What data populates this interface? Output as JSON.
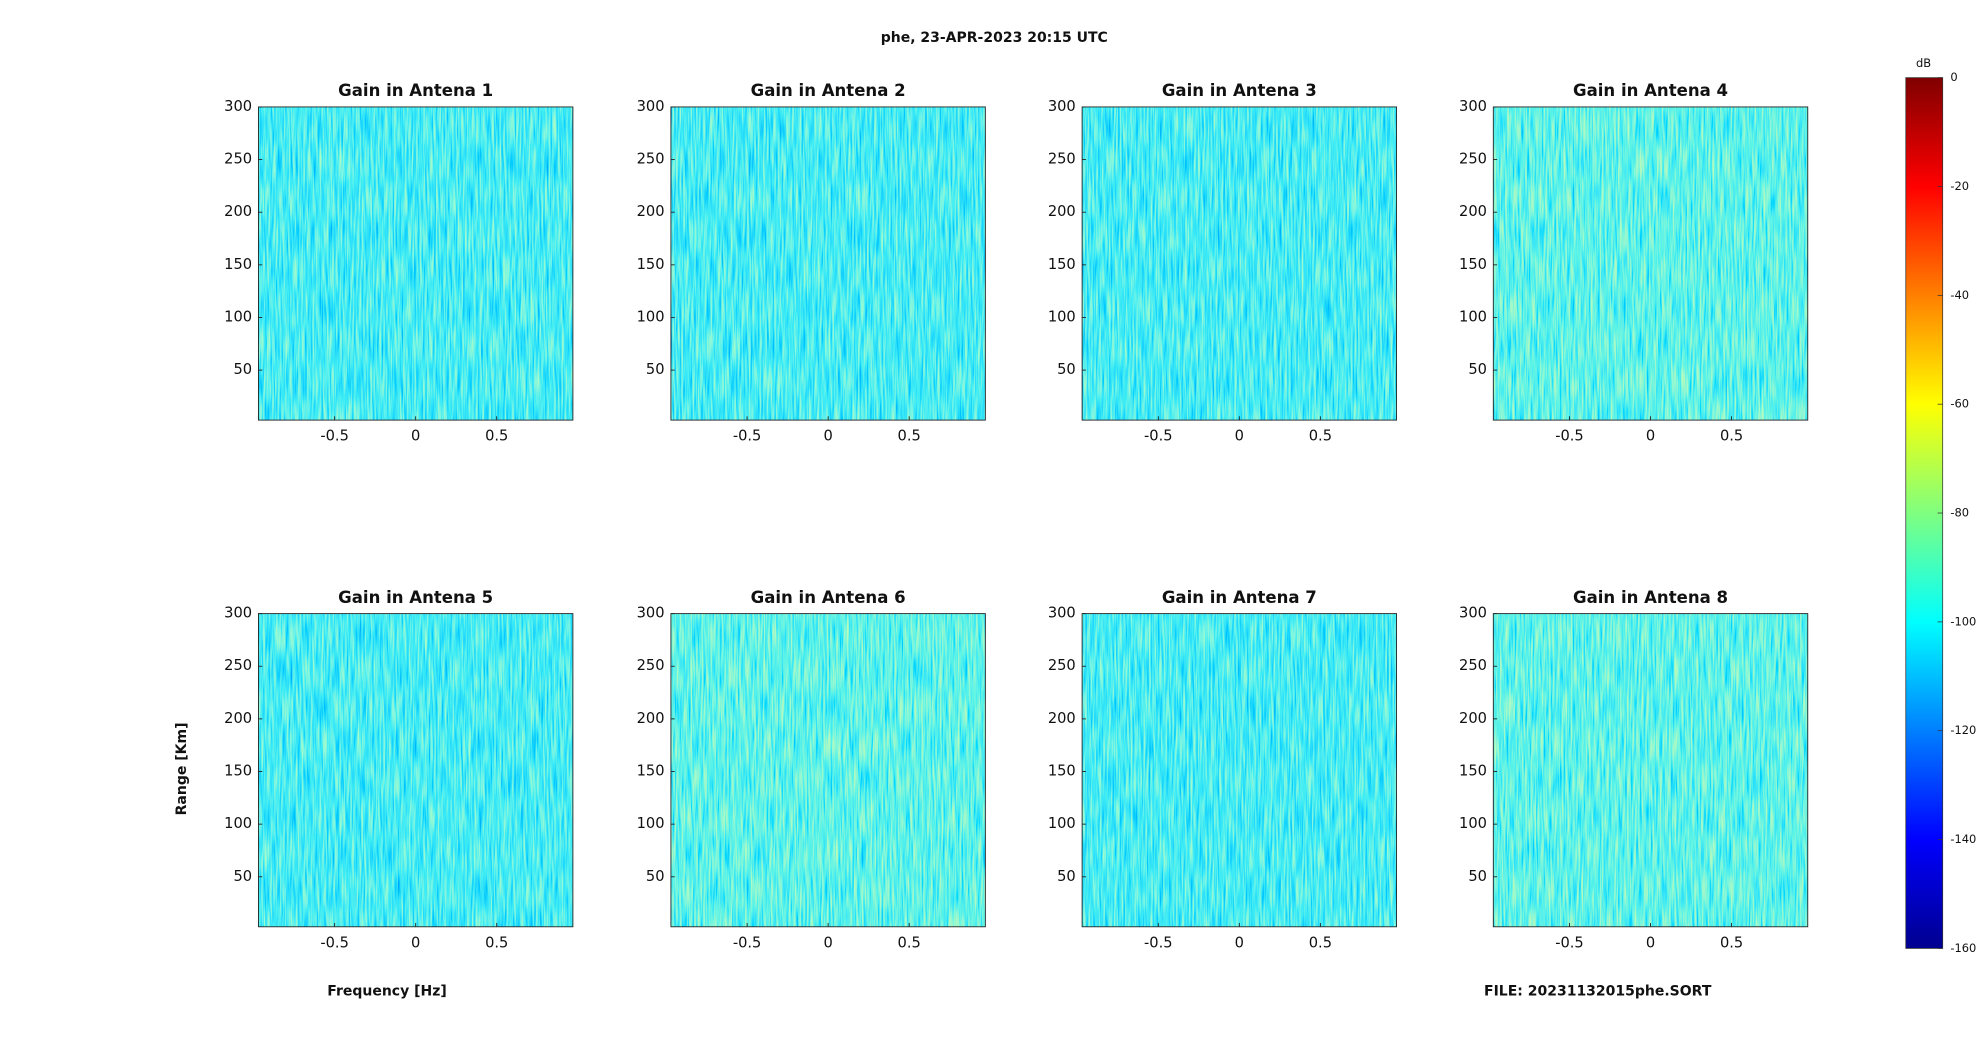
{
  "title": "phe, 23-APR-2023 20:15 UTC",
  "x_label": "Frequency [Hz]",
  "y_label": "Range [Km]",
  "annotation": "FILE: 20231132015phe.SORT",
  "colorbar": {
    "label": "dB",
    "colormap": "jet",
    "clim": [
      -160,
      0
    ],
    "ticks": [
      0,
      -20,
      -40,
      -60,
      -80,
      -100,
      -120,
      -140,
      -160
    ]
  },
  "chart_data": [
    {
      "type": "heatmap",
      "title": "Gain in Antena 1",
      "xlim": [
        -0.97,
        0.97
      ],
      "xticks": [
        -0.5,
        0,
        0.5
      ],
      "ylim": [
        2.5,
        300
      ],
      "yticks": [
        50,
        100,
        150,
        200,
        250,
        300
      ]
    },
    {
      "type": "heatmap",
      "title": "Gain in Antena 2",
      "xlim": [
        -0.97,
        0.97
      ],
      "xticks": [
        -0.5,
        0,
        0.5
      ],
      "ylim": [
        2.5,
        300
      ],
      "yticks": [
        50,
        100,
        150,
        200,
        250,
        300
      ]
    },
    {
      "type": "heatmap",
      "title": "Gain in Antena 3",
      "xlim": [
        -0.97,
        0.97
      ],
      "xticks": [
        -0.5,
        0,
        0.5
      ],
      "ylim": [
        2.5,
        300
      ],
      "yticks": [
        50,
        100,
        150,
        200,
        250,
        300
      ]
    },
    {
      "type": "heatmap",
      "title": "Gain in Antena 4",
      "xlim": [
        -0.97,
        0.97
      ],
      "xticks": [
        -0.5,
        0,
        0.5
      ],
      "ylim": [
        2.5,
        300
      ],
      "yticks": [
        50,
        100,
        150,
        200,
        250,
        300
      ]
    },
    {
      "type": "heatmap",
      "title": "Gain in Antena 5",
      "xlim": [
        -0.97,
        0.97
      ],
      "xticks": [
        -0.5,
        0,
        0.5
      ],
      "ylim": [
        2.5,
        300
      ],
      "yticks": [
        50,
        100,
        150,
        200,
        250,
        300
      ]
    },
    {
      "type": "heatmap",
      "title": "Gain in Antena 6",
      "xlim": [
        -0.97,
        0.97
      ],
      "xticks": [
        -0.5,
        0,
        0.5
      ],
      "ylim": [
        2.5,
        300
      ],
      "yticks": [
        50,
        100,
        150,
        200,
        250,
        300
      ]
    },
    {
      "type": "heatmap",
      "title": "Gain in Antena 7",
      "xlim": [
        -0.97,
        0.97
      ],
      "xticks": [
        -0.5,
        0,
        0.5
      ],
      "ylim": [
        2.5,
        300
      ],
      "yticks": [
        50,
        100,
        150,
        200,
        250,
        300
      ]
    },
    {
      "type": "heatmap",
      "title": "Gain in Antena 8",
      "xlim": [
        -0.97,
        0.97
      ],
      "xticks": [
        -0.5,
        0,
        0.5
      ],
      "ylim": [
        2.5,
        300
      ],
      "yticks": [
        50,
        100,
        150,
        200,
        250,
        300
      ]
    }
  ]
}
